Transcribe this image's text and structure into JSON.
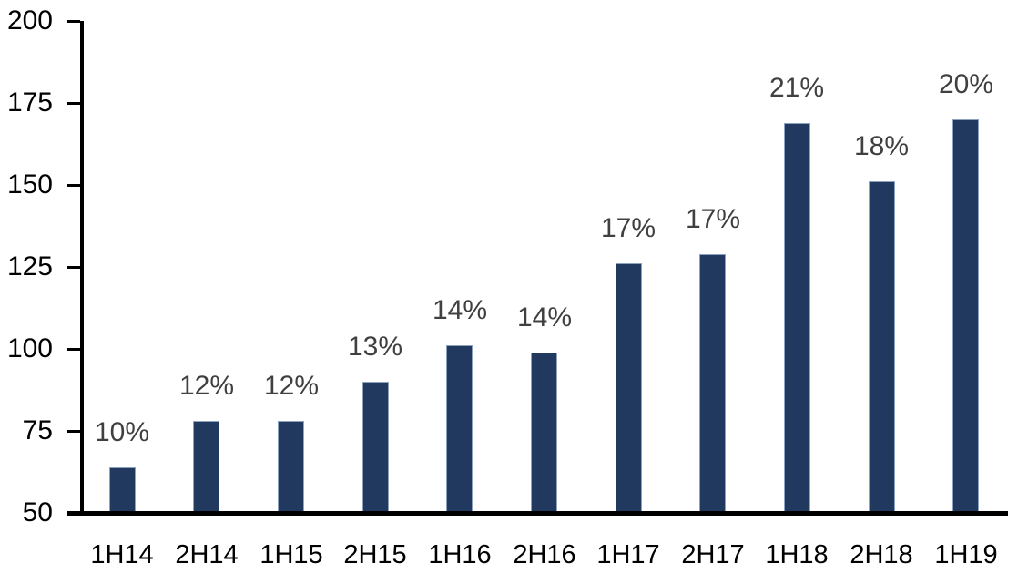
{
  "chart_data": {
    "type": "bar",
    "title": "",
    "xlabel": "",
    "ylabel": "",
    "categories": [
      "1H14",
      "2H14",
      "1H15",
      "2H15",
      "1H16",
      "2H16",
      "1H17",
      "2H17",
      "1H18",
      "2H18",
      "1H19"
    ],
    "values": [
      64,
      78,
      78,
      90,
      101,
      99,
      126,
      129,
      169,
      151,
      170
    ],
    "data_labels": [
      "10%",
      "12%",
      "12%",
      "13%",
      "14%",
      "14%",
      "17%",
      "17%",
      "21%",
      "18%",
      "20%"
    ],
    "ylim": [
      50,
      200
    ],
    "yticks": [
      50,
      75,
      100,
      125,
      150,
      175,
      200
    ],
    "grid": false,
    "legend": false,
    "colors": {
      "bar_fill": "#21395E",
      "bar_border": "#8EA3C1",
      "axis": "#000000",
      "tick_label": "#000000",
      "data_label": "#404040",
      "background": "#FFFFFF"
    }
  }
}
